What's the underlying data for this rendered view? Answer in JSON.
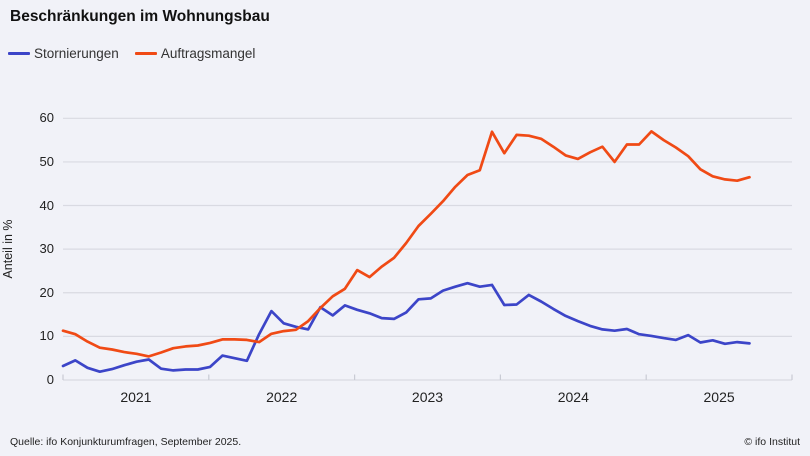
{
  "title": "Beschränkungen im Wohnungsbau",
  "legend": {
    "items": [
      {
        "label": "Stornierungen",
        "color": "#3c45c8"
      },
      {
        "label": "Auftragsmangel",
        "color": "#f04a15"
      }
    ]
  },
  "chart_data": {
    "type": "line",
    "x_start": "2021-01",
    "x_end": "2025-09",
    "x_tick_labels": [
      "2021",
      "2022",
      "2023",
      "2024",
      "2025"
    ],
    "ylabel": "Anteil in %",
    "ylim": [
      0,
      60
    ],
    "yticks": [
      0,
      10,
      20,
      30,
      40,
      50,
      60
    ],
    "grid": "horizontal",
    "legend_position": "top-left",
    "series": [
      {
        "name": "Stornierungen",
        "color": "#3c45c8",
        "values": [
          3.2,
          4.5,
          2.8,
          1.9,
          2.5,
          3.4,
          4.2,
          4.7,
          2.6,
          2.2,
          2.4,
          2.4,
          3.0,
          5.6,
          5.0,
          4.4,
          10.5,
          15.8,
          13.0,
          12.2,
          11.6,
          16.7,
          14.8,
          17.1,
          16.1,
          15.3,
          14.2,
          14.0,
          15.5,
          18.5,
          18.7,
          20.5,
          21.4,
          22.2,
          21.4,
          21.8,
          17.2,
          17.3,
          19.5,
          18.0,
          16.3,
          14.7,
          13.5,
          12.4,
          11.6,
          11.3,
          11.7,
          10.5,
          10.1,
          9.6,
          9.2,
          10.3,
          8.6,
          9.1,
          8.3,
          8.7,
          8.4
        ]
      },
      {
        "name": "Auftragsmangel",
        "color": "#f04a15",
        "values": [
          11.3,
          10.5,
          8.8,
          7.4,
          7.0,
          6.4,
          6.0,
          5.4,
          6.3,
          7.3,
          7.7,
          7.9,
          8.5,
          9.3,
          9.3,
          9.2,
          8.7,
          10.6,
          11.2,
          11.5,
          13.5,
          16.5,
          19.2,
          20.9,
          25.2,
          23.6,
          26.0,
          28.0,
          31.4,
          35.3,
          38.1,
          41.0,
          44.3,
          47.0,
          48.1,
          56.9,
          52.0,
          56.2,
          56.0,
          55.3,
          53.5,
          51.5,
          50.7,
          52.2,
          53.5,
          50.0,
          54.0,
          54.0,
          57.0,
          55.0,
          53.3,
          51.3,
          48.3,
          46.7,
          46.0,
          45.7,
          46.5
        ]
      }
    ]
  },
  "footer": {
    "source": "Quelle: ifo Konjunkturumfragen,  September 2025.",
    "copyright": "© ifo Institut"
  }
}
